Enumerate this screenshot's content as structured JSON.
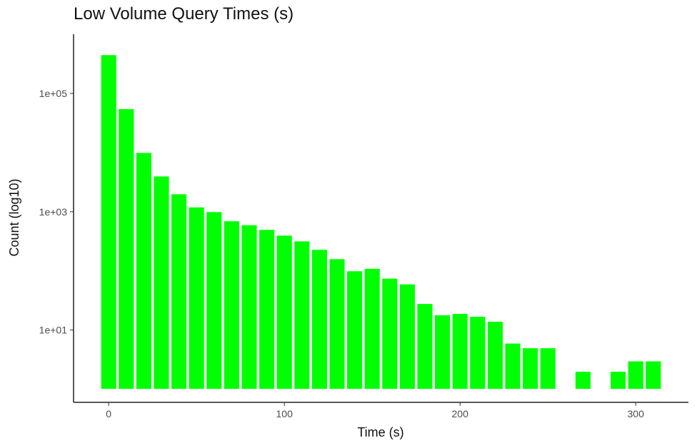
{
  "chart_data": {
    "type": "bar",
    "title": "Low Volume Query Times (s)",
    "xlabel": "Time (s)",
    "ylabel": "Count (log10)",
    "y_scale": "log10",
    "x_ticks": [
      0,
      100,
      200,
      300
    ],
    "x_tick_labels": [
      "0",
      "100",
      "200",
      "300"
    ],
    "y_ticks": [
      10,
      1000,
      100000
    ],
    "y_tick_labels": [
      "1e+01",
      "1e+03",
      "1e+05"
    ],
    "xlim": [
      -20,
      330
    ],
    "ylim": [
      0.6,
      1000000
    ],
    "bar_width": 9,
    "bar_color": "#00ff00",
    "bar_outline": "#ffffff",
    "grid": false,
    "x": [
      0,
      10,
      20,
      30,
      40,
      50,
      60,
      70,
      80,
      90,
      100,
      110,
      120,
      130,
      140,
      150,
      160,
      170,
      180,
      190,
      200,
      210,
      220,
      230,
      240,
      250,
      270,
      290,
      300,
      310
    ],
    "values": [
      450000,
      55000,
      10000,
      4000,
      2000,
      1200,
      1000,
      700,
      600,
      500,
      400,
      320,
      230,
      160,
      100,
      110,
      75,
      60,
      28,
      18,
      19,
      17,
      14,
      6,
      5,
      5,
      2,
      2,
      3,
      3
    ]
  }
}
